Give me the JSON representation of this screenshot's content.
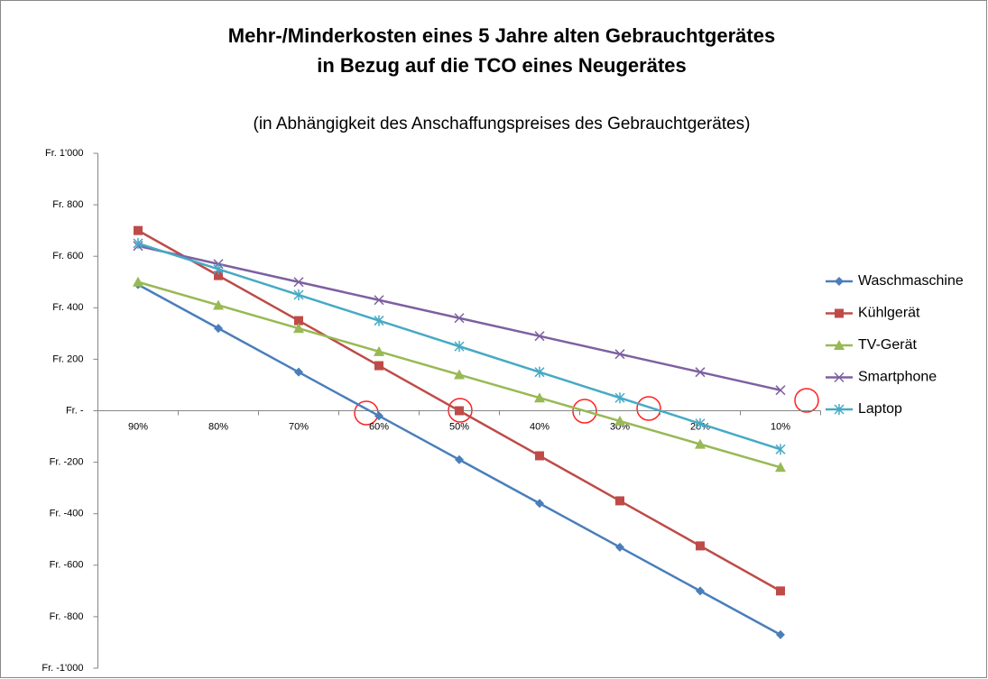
{
  "chart_data": {
    "type": "line",
    "title": [
      "Mehr-/Minderkosten eines 5 Jahre alten Gebrauchtgerätes",
      "in Bezug auf die TCO eines Neugerätes"
    ],
    "subtitle": "(in Abhängigkeit des Anschaffungspreises des Gebrauchtgerätes)",
    "categories": [
      "90%",
      "80%",
      "70%",
      "60%",
      "50%",
      "40%",
      "30%",
      "20%",
      "10%"
    ],
    "series": [
      {
        "name": "Waschmaschine",
        "color": "#4a7ebb",
        "marker": "diamond",
        "values": [
          490,
          320,
          150,
          -20,
          -190,
          -360,
          -530,
          -700,
          -870
        ]
      },
      {
        "name": "Kühlgerät",
        "color": "#be4b48",
        "marker": "square",
        "values": [
          700,
          525,
          350,
          175,
          0,
          -175,
          -350,
          -525,
          -700
        ]
      },
      {
        "name": "TV-Gerät",
        "color": "#98b954",
        "marker": "triangle",
        "values": [
          500,
          410,
          320,
          230,
          140,
          50,
          -40,
          -130,
          -220
        ]
      },
      {
        "name": "Smartphone",
        "color": "#7d60a0",
        "marker": "x",
        "values": [
          640,
          570,
          500,
          430,
          360,
          290,
          220,
          150,
          80
        ]
      },
      {
        "name": "Laptop",
        "color": "#46aac5",
        "marker": "asterisk",
        "values": [
          650,
          550,
          450,
          350,
          250,
          150,
          50,
          -50,
          -150
        ]
      }
    ],
    "ylim": [
      -1000,
      1000
    ],
    "yticks": [
      {
        "value": 1000,
        "label": "Fr. 1'000"
      },
      {
        "value": 800,
        "label": "Fr. 800"
      },
      {
        "value": 600,
        "label": "Fr. 600"
      },
      {
        "value": 400,
        "label": "Fr. 400"
      },
      {
        "value": 200,
        "label": "Fr. 200"
      },
      {
        "value": 0,
        "label": "Fr. -"
      },
      {
        "value": -200,
        "label": "Fr. -200"
      },
      {
        "value": -400,
        "label": "Fr. -400"
      },
      {
        "value": -600,
        "label": "Fr. -600"
      },
      {
        "value": -800,
        "label": "Fr. -800"
      },
      {
        "value": -1000,
        "label": "Fr. -1'000"
      }
    ],
    "grid": false,
    "legend": "right"
  }
}
